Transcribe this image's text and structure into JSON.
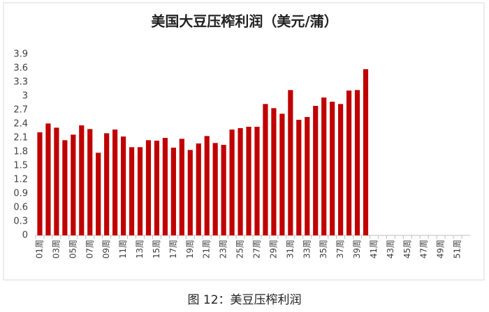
{
  "chart_data": {
    "type": "bar",
    "title": "美国大豆压榨利润（美元/蒲）",
    "categories": [
      "01周",
      null,
      "03周",
      null,
      "05周",
      null,
      "07周",
      null,
      "09周",
      null,
      "11周",
      null,
      "13周",
      null,
      "15周",
      null,
      "17周",
      null,
      "19周",
      null,
      "21周",
      null,
      "23周",
      null,
      "25周",
      null,
      "27周",
      null,
      "29周",
      null,
      "31周",
      null,
      "33周",
      null,
      "35周",
      null,
      "37周",
      null,
      "39周",
      null,
      "41周",
      null,
      "43周",
      null,
      "45周",
      null,
      "47周",
      null,
      "49周",
      null,
      "51周",
      null
    ],
    "values": [
      2.22,
      2.41,
      2.32,
      2.05,
      2.17,
      2.37,
      2.29,
      1.78,
      2.2,
      2.28,
      2.13,
      1.9,
      1.9,
      2.05,
      2.04,
      2.1,
      1.89,
      2.08,
      1.84,
      1.98,
      2.14,
      1.99,
      1.95,
      2.28,
      2.31,
      2.34,
      2.34,
      2.83,
      2.74,
      2.62,
      3.13,
      2.49,
      2.55,
      2.79,
      2.97,
      2.88,
      2.83,
      3.12,
      3.13,
      3.58,
      null,
      null,
      null,
      null,
      null,
      null,
      null,
      null,
      null,
      null,
      null,
      null
    ],
    "color": "#c00000",
    "ylim": [
      0,
      3.9
    ],
    "yticks": [
      0,
      0.3,
      0.6,
      0.9,
      1.2,
      1.5,
      1.8,
      2.1,
      2.4,
      2.7,
      3,
      3.3,
      3.6,
      3.9
    ],
    "grid": false
  },
  "caption": "图 12：美豆压榨利润"
}
